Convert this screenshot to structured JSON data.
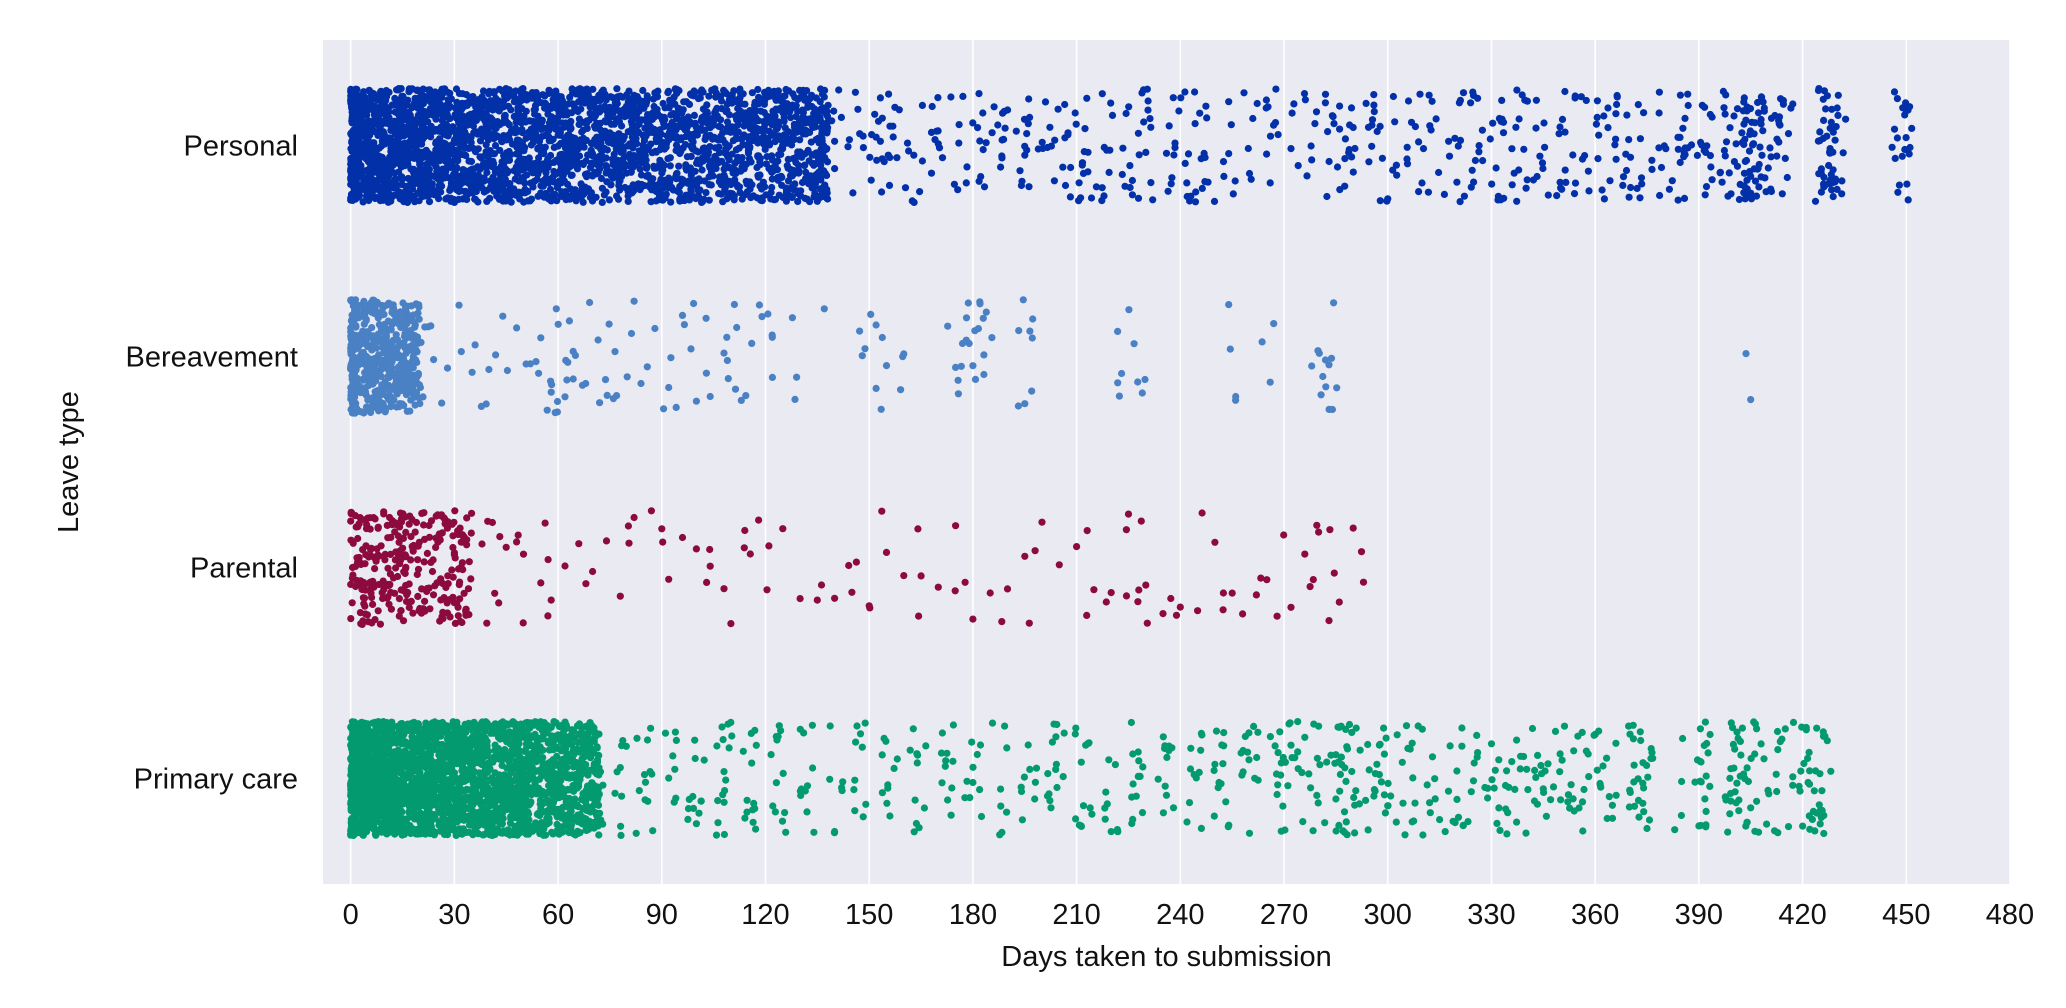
{
  "colors": {
    "background": "#ffffff",
    "plot_background": "#eaeaf2",
    "grid": "#ffffff",
    "text": "#111111"
  },
  "chart_data": {
    "type": "scatter",
    "subtype": "strip",
    "orientation": "horizontal",
    "xlabel": "Days taken to submission",
    "ylabel": "Leave type",
    "xlim": [
      -8,
      480
    ],
    "xticks": [
      0,
      30,
      60,
      90,
      120,
      150,
      180,
      210,
      240,
      270,
      300,
      330,
      360,
      390,
      420,
      450,
      480
    ],
    "grid": "vertical",
    "categories": [
      "Personal",
      "Bereavement",
      "Parental",
      "Primary care"
    ],
    "series": [
      {
        "category": "Personal",
        "color": "#0230a8",
        "approx_points": 6000,
        "dense_range": [
          0,
          138
        ],
        "x": [
          0,
          3,
          7,
          12,
          18,
          25,
          33,
          42,
          52,
          63,
          75,
          88,
          100,
          112,
          124,
          136,
          140,
          146,
          152,
          158,
          163,
          170,
          176,
          182,
          188,
          195,
          201,
          206,
          212,
          218,
          224,
          230,
          236,
          242,
          248,
          254,
          260,
          266,
          272,
          278,
          284,
          290,
          296,
          302,
          308,
          314,
          320,
          326,
          332,
          338,
          344,
          350,
          356,
          362,
          368,
          374,
          380,
          386,
          392,
          398,
          403,
          405,
          406,
          407,
          408,
          412,
          415,
          426,
          427,
          428,
          430,
          448,
          450
        ]
      },
      {
        "category": "Bereavement",
        "color": "#4a80c4",
        "approx_points": 1100,
        "dense_range": [
          0,
          20
        ],
        "x": [
          0,
          2,
          5,
          8,
          12,
          16,
          20,
          24,
          28,
          32,
          36,
          40,
          44,
          48,
          52,
          55,
          58,
          62,
          65,
          68,
          72,
          76,
          80,
          84,
          88,
          92,
          96,
          100,
          104,
          108,
          111,
          113,
          116,
          119,
          122,
          129,
          137,
          148,
          152,
          155,
          160,
          175,
          177,
          180,
          182,
          183,
          195,
          197,
          223,
          229,
          254,
          256,
          266,
          278,
          282,
          283,
          284,
          405
        ]
      },
      {
        "category": "Parental",
        "color": "#8c0b3c",
        "approx_points": 550,
        "dense_range": [
          0,
          35
        ],
        "x": [
          0,
          2,
          4,
          6,
          8,
          10,
          12,
          14,
          16,
          18,
          20,
          22,
          25,
          28,
          30,
          32,
          35,
          38,
          41,
          45,
          48,
          50,
          55,
          58,
          62,
          66,
          70,
          74,
          78,
          82,
          87,
          90,
          92,
          96,
          100,
          104,
          108,
          110,
          114,
          118,
          121,
          125,
          130,
          135,
          140,
          145,
          150,
          155,
          160,
          165,
          170,
          175,
          180,
          185,
          190,
          195,
          198,
          200,
          205,
          210,
          215,
          220,
          225,
          228,
          230,
          235,
          240,
          245,
          250,
          255,
          258,
          262,
          265,
          268,
          272,
          276,
          280,
          283,
          286,
          290,
          293
        ]
      },
      {
        "category": "Primary care",
        "color": "#039a6e",
        "approx_points": 5500,
        "dense_range": [
          0,
          72
        ],
        "x": [
          0,
          3,
          7,
          12,
          18,
          25,
          33,
          42,
          52,
          63,
          72,
          78,
          85,
          92,
          100,
          108,
          116,
          124,
          132,
          140,
          148,
          156,
          164,
          172,
          180,
          188,
          196,
          204,
          212,
          220,
          228,
          236,
          244,
          252,
          260,
          268,
          272,
          276,
          280,
          285,
          288,
          292,
          296,
          300,
          305,
          310,
          315,
          320,
          325,
          330,
          335,
          340,
          345,
          350,
          355,
          360,
          365,
          370,
          375,
          385,
          390,
          392,
          400,
          401,
          405,
          408,
          410,
          415,
          420,
          422,
          425,
          426
        ]
      }
    ]
  }
}
